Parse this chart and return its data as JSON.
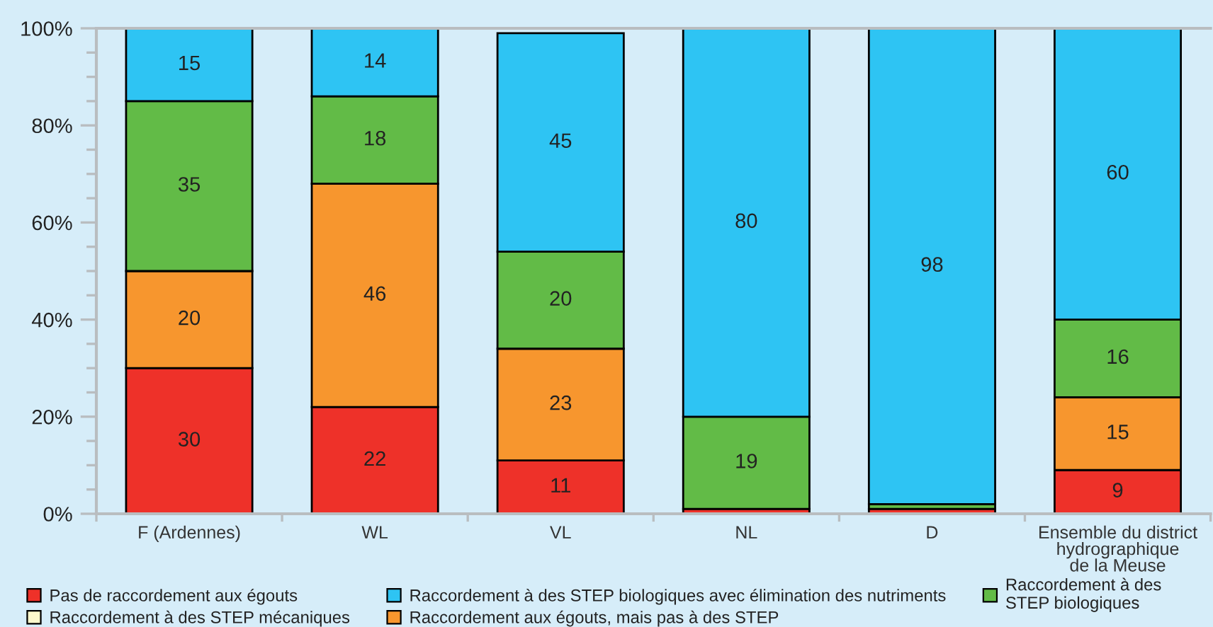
{
  "chart_data": {
    "type": "bar",
    "stacked": true,
    "categories": [
      "F (Ardennes)",
      "WL",
      "VL",
      "NL",
      "D",
      "Ensemble du district\nhydrographique\nde la Meuse"
    ],
    "series": [
      {
        "name": "Pas de raccordement aux égouts",
        "color": "#ee3129",
        "values": [
          30,
          22,
          11,
          1,
          1,
          9
        ],
        "value_labels": [
          "30",
          "22",
          "11",
          null,
          null,
          "9"
        ]
      },
      {
        "name": "Raccordement aux égouts, mais pas à des STEP",
        "color": "#f7962e",
        "values": [
          20,
          46,
          23,
          null,
          null,
          15
        ],
        "value_labels": [
          "20",
          "46",
          "23",
          null,
          null,
          "15"
        ]
      },
      {
        "name": "Raccordement à des STEP mécaniques",
        "color": "#fdf8cc",
        "values": [
          null,
          null,
          null,
          null,
          null,
          null
        ]
      },
      {
        "name": "Raccordement à des\nSTEP biologiques",
        "color": "#62bb47",
        "values": [
          35,
          18,
          20,
          19,
          1,
          16
        ],
        "value_labels": [
          "35",
          "18",
          "20",
          "19",
          null,
          "16"
        ]
      },
      {
        "name": "Raccordement à des STEP biologiques avec élimination des nutriments",
        "color": "#2ec4f3",
        "values": [
          15,
          14,
          45,
          80,
          98,
          60
        ],
        "value_labels": [
          "15",
          "14",
          "45",
          "80",
          "98",
          "60"
        ]
      }
    ],
    "ylim": [
      0,
      100
    ],
    "yticks": [
      {
        "value": 0,
        "label": "0%"
      },
      {
        "value": 5,
        "label": null
      },
      {
        "value": 10,
        "label": null
      },
      {
        "value": 15,
        "label": null
      },
      {
        "value": 20,
        "label": "20%"
      },
      {
        "value": 25,
        "label": null
      },
      {
        "value": 30,
        "label": null
      },
      {
        "value": 35,
        "label": null
      },
      {
        "value": 40,
        "label": "40%"
      },
      {
        "value": 45,
        "label": null
      },
      {
        "value": 50,
        "label": null
      },
      {
        "value": 55,
        "label": null
      },
      {
        "value": 60,
        "label": "60%"
      },
      {
        "value": 65,
        "label": null
      },
      {
        "value": 70,
        "label": null
      },
      {
        "value": 75,
        "label": null
      },
      {
        "value": 80,
        "label": "80%"
      },
      {
        "value": 85,
        "label": null
      },
      {
        "value": 90,
        "label": null
      },
      {
        "value": 95,
        "label": null
      },
      {
        "value": 100,
        "label": "100%"
      }
    ],
    "legend": "bottom"
  }
}
